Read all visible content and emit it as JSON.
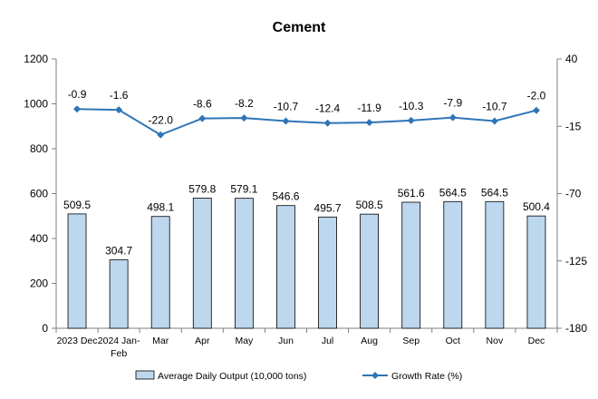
{
  "chart_data": {
    "type": "bar",
    "title": "Cement",
    "categories": [
      "2023 Dec",
      "2024 Jan-\nFeb",
      "Mar",
      "Apr",
      "May",
      "Jun",
      "Jul",
      "Aug",
      "Sep",
      "Oct",
      "Nov",
      "Dec"
    ],
    "series": [
      {
        "name": "Average Daily Output (10,000 tons)",
        "type": "bar",
        "axis": "left",
        "values": [
          509.5,
          304.7,
          498.1,
          579.8,
          579.1,
          546.6,
          495.7,
          508.5,
          561.6,
          564.5,
          564.5,
          500.4
        ],
        "labels": [
          "509.5",
          "304.7",
          "498.1",
          "579.8",
          "579.1",
          "546.6",
          "495.7",
          "508.5",
          "561.6",
          "564.5",
          "564.5",
          "500.4"
        ]
      },
      {
        "name": "Growth Rate (%)",
        "type": "line",
        "axis": "right",
        "values": [
          -0.9,
          -1.6,
          -22.0,
          -8.6,
          -8.2,
          -10.7,
          -12.4,
          -11.9,
          -10.3,
          -7.9,
          -10.7,
          -2.0
        ],
        "labels": [
          "-0.9",
          "-1.6",
          "-22.0",
          "-8.6",
          "-8.2",
          "-10.7",
          "-12.4",
          "-11.9",
          "-10.3",
          "-7.9",
          "-10.7",
          "-2.0"
        ]
      }
    ],
    "y_left": {
      "min": 0,
      "max": 1200,
      "ticks": [
        0,
        200,
        400,
        600,
        800,
        1000,
        1200
      ]
    },
    "y_right": {
      "min": -180,
      "max": 40,
      "ticks": [
        "-180",
        "-125",
        "-70",
        "-15",
        "40"
      ]
    },
    "grid": false,
    "legend_position": "bottom",
    "colors": {
      "bar_fill": "#bdd7ee",
      "bar_stroke": "#000000",
      "line": "#2e75b6",
      "axis": "#7f7f7f"
    }
  }
}
